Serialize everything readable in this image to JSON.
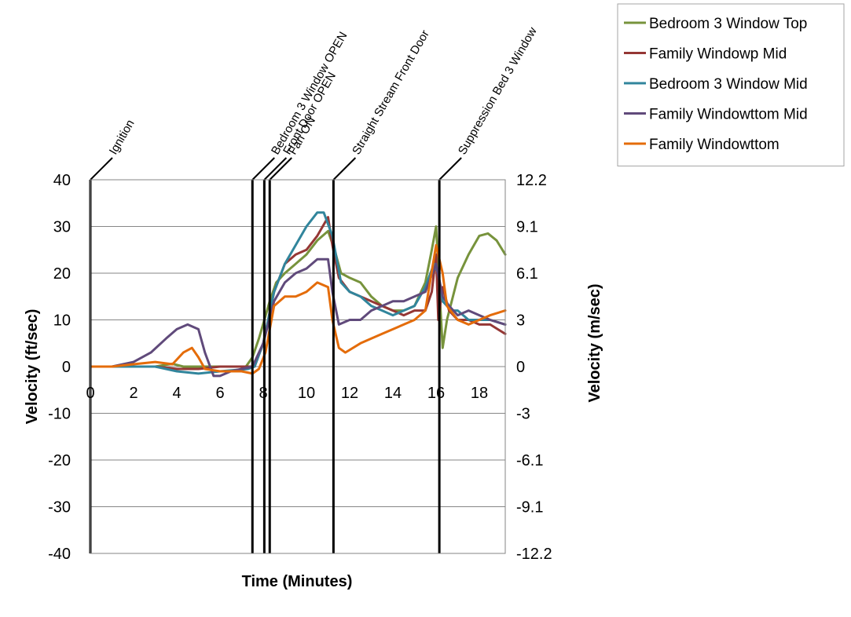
{
  "chart_data": {
    "type": "line",
    "xlabel": "Time (Minutes)",
    "ylabel": "Velocity (ft/sec)",
    "y2label": "Velocity (m/sec)",
    "xlim": [
      0,
      19.2
    ],
    "ylim": [
      -40,
      40
    ],
    "x_ticks": [
      "0",
      "2",
      "4",
      "6",
      "8",
      "10",
      "12",
      "14",
      "16",
      "18"
    ],
    "y_ticks": [
      "40",
      "30",
      "20",
      "10",
      "0",
      "-10",
      "-20",
      "-30",
      "-40"
    ],
    "y2_ticks": [
      "12.2",
      "9.1",
      "6.1",
      "3",
      "0",
      "-3",
      "-6.1",
      "-9.1",
      "-12.2"
    ],
    "grid": "horizontal",
    "legend": "top-right",
    "events": [
      {
        "label": "Ignition",
        "x": 0
      },
      {
        "label": "Bedroom 3 Window OPEN",
        "x": 7.5
      },
      {
        "label": "Front Door OPEN",
        "x": 8.05
      },
      {
        "label": "Fan ON",
        "x": 8.3
      },
      {
        "label": "Straight Stream Front Door",
        "x": 11.25
      },
      {
        "label": "Suppression Bed 3 Window",
        "x": 16.15
      }
    ],
    "series": [
      {
        "name": "Bedroom 3 Window Top",
        "color": "#77933c",
        "x": [
          0,
          2,
          3,
          3.8,
          4.3,
          5,
          6,
          7.2,
          7.5,
          7.8,
          8.3,
          8.6,
          9,
          9.5,
          10,
          10.5,
          11,
          11.3,
          11.6,
          12,
          12.5,
          13,
          13.5,
          14,
          14.5,
          15,
          15.5,
          15.8,
          16,
          16.15,
          16.3,
          16.5,
          17,
          17.5,
          18,
          18.4,
          18.8,
          19.2
        ],
        "y": [
          0,
          0,
          0,
          0.6,
          0,
          0,
          0,
          0,
          2,
          6,
          14,
          18,
          20,
          22,
          24,
          27,
          29,
          25,
          20,
          19,
          18,
          15,
          13,
          12,
          12,
          13,
          18,
          25,
          30,
          17,
          4,
          10,
          19,
          24,
          28,
          28.5,
          27,
          24
        ]
      },
      {
        "name": "Family Windowp Mid",
        "color": "#953735",
        "x": [
          0,
          2,
          3,
          4,
          5,
          6,
          7.3,
          7.6,
          8,
          8.5,
          9,
          9.5,
          10,
          10.5,
          11,
          11.2,
          11.5,
          12,
          12.5,
          13,
          13.5,
          14,
          14.5,
          15,
          15.5,
          15.8,
          16,
          16.1,
          16.3,
          16.6,
          17,
          17.5,
          18,
          18.5,
          19.2
        ],
        "y": [
          0,
          0,
          0,
          -0.5,
          -0.5,
          0,
          0,
          0,
          5,
          16,
          22,
          24,
          25,
          28,
          32,
          26,
          19,
          16,
          15,
          14,
          13,
          12,
          11,
          12,
          12,
          16,
          24,
          10,
          17,
          12,
          10,
          10,
          9,
          9,
          7
        ]
      },
      {
        "name": "Bedroom 3 Window Mid",
        "color": "#31859c",
        "x": [
          0,
          2,
          3,
          4,
          5,
          6,
          7.3,
          7.6,
          8,
          8.5,
          9,
          9.5,
          10,
          10.5,
          10.8,
          11.2,
          11.6,
          12,
          12.5,
          13,
          13.5,
          14,
          14.5,
          15,
          15.5,
          15.9,
          16.1,
          16.3,
          16.7,
          17,
          17.5,
          18,
          18.5,
          19.2
        ],
        "y": [
          0,
          0,
          0,
          -1,
          -1.5,
          -1,
          -0.5,
          0,
          5,
          16,
          22,
          26,
          30,
          33,
          33,
          28,
          18,
          16,
          15,
          13,
          12,
          11,
          12,
          13,
          17,
          22,
          20,
          14,
          12,
          12,
          10,
          10,
          10,
          9
        ]
      },
      {
        "name": "Family Windowttom Mid",
        "color": "#604a7b",
        "x": [
          0,
          1,
          2,
          2.8,
          3.5,
          4,
          4.5,
          5,
          5.3,
          5.7,
          6,
          6.5,
          7,
          7.5,
          8,
          8.5,
          9,
          9.5,
          10,
          10.5,
          11,
          11.2,
          11.5,
          12,
          12.5,
          13,
          13.5,
          14,
          14.5,
          15,
          15.5,
          16,
          16.3,
          16.6,
          17,
          17.5,
          18,
          18.5,
          19.2
        ],
        "y": [
          0,
          0,
          1,
          3,
          6,
          8,
          9,
          8,
          3,
          -2,
          -2,
          -1,
          -0.5,
          0,
          5,
          14,
          18,
          20,
          21,
          23,
          23,
          16,
          9,
          10,
          10,
          12,
          13,
          14,
          14,
          15,
          16,
          22,
          15,
          13,
          11,
          12,
          11,
          10,
          9
        ]
      },
      {
        "name": "Family Windowttom",
        "color": "#e46c0a",
        "x": [
          0,
          1,
          2,
          3,
          3.8,
          4.3,
          4.7,
          5,
          5.3,
          6,
          6.5,
          7,
          7.5,
          7.8,
          8.1,
          8.5,
          9,
          9.5,
          10,
          10.5,
          11,
          11.2,
          11.5,
          11.8,
          12.5,
          13,
          13.5,
          14,
          14.5,
          15,
          15.5,
          16,
          16.3,
          16.5,
          17,
          17.5,
          18,
          18.5,
          19.2
        ],
        "y": [
          0,
          0,
          0.5,
          1,
          0.5,
          3,
          4,
          2,
          -0.5,
          -1,
          -1,
          -1,
          -1.5,
          -0.5,
          3,
          13,
          15,
          15,
          16,
          18,
          17,
          10,
          4,
          3,
          5,
          6,
          7,
          8,
          9,
          10,
          12,
          26,
          20,
          13,
          10,
          9,
          10,
          11,
          12
        ]
      }
    ]
  }
}
